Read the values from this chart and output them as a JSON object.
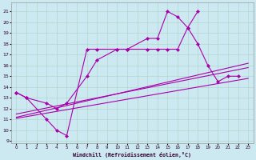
{
  "xlabel": "Windchill (Refroidissement éolien,°C)",
  "background_color": "#cce8f0",
  "grid_color": "#aad4c8",
  "line_color": "#aa00aa",
  "x_ticks": [
    0,
    1,
    2,
    3,
    4,
    5,
    6,
    7,
    8,
    9,
    10,
    11,
    12,
    13,
    14,
    15,
    16,
    17,
    18,
    19,
    20,
    21,
    22,
    23
  ],
  "y_ticks": [
    9,
    10,
    11,
    12,
    13,
    14,
    15,
    16,
    17,
    18,
    19,
    20,
    21
  ],
  "ylim": [
    8.8,
    21.8
  ],
  "xlim": [
    -0.5,
    23.5
  ],
  "s1x": [
    0,
    1,
    3,
    4,
    5,
    7,
    8,
    10,
    11,
    13,
    14,
    15,
    16,
    17,
    18
  ],
  "s1y": [
    13.5,
    13.0,
    11.0,
    10.0,
    9.5,
    17.5,
    17.5,
    17.5,
    17.5,
    18.5,
    18.5,
    21.0,
    20.5,
    19.5,
    21.0
  ],
  "s2x": [
    0,
    1,
    3,
    4,
    5,
    7,
    8,
    10,
    11,
    13,
    14,
    15,
    16,
    17,
    18,
    19,
    20,
    21,
    22
  ],
  "s2y": [
    13.5,
    13.0,
    12.5,
    12.0,
    12.5,
    15.0,
    16.5,
    17.5,
    17.5,
    17.5,
    17.5,
    17.5,
    17.5,
    19.5,
    18.0,
    16.0,
    14.5,
    15.0,
    15.0
  ],
  "line1": {
    "x": [
      0,
      23
    ],
    "y": [
      11.2,
      16.2
    ]
  },
  "line2": {
    "x": [
      0,
      23
    ],
    "y": [
      11.5,
      15.8
    ]
  },
  "line3": {
    "x": [
      0,
      23
    ],
    "y": [
      11.1,
      14.8
    ]
  }
}
